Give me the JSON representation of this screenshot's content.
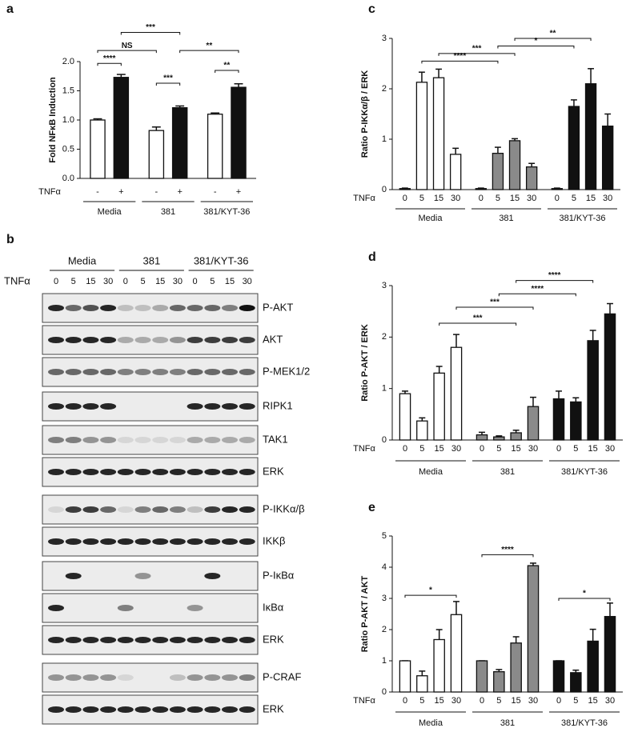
{
  "chart_data": [
    {
      "type": "bar",
      "label": "a",
      "ylabel": "Fold NFκB Induction",
      "row_label": "TNFα",
      "categories": [
        "-",
        "+",
        "-",
        "+",
        "-",
        "+"
      ],
      "groups": [
        "Media",
        "381",
        "381/KYT-36"
      ],
      "values": [
        1.0,
        1.73,
        0.82,
        1.21,
        1.1,
        1.56
      ],
      "errors": [
        0.02,
        0.05,
        0.06,
        0.03,
        0.02,
        0.06
      ],
      "colors": [
        "#ffffff",
        "#111111",
        "#ffffff",
        "#111111",
        "#ffffff",
        "#111111"
      ],
      "ylim": [
        0,
        2.0
      ],
      "yticks": [
        {
          "value": 0,
          "label": "0.0"
        },
        {
          "value": 0.5,
          "label": "0.5"
        },
        {
          "value": 1.0,
          "label": "1.0"
        },
        {
          "value": 1.5,
          "label": "1.5"
        },
        {
          "value": 2.0,
          "label": "2.0"
        }
      ],
      "annotations": [
        "****",
        "***",
        "**",
        "NS",
        "***",
        "**"
      ]
    },
    {
      "type": "bar",
      "label": "c",
      "ylabel": "Ratio P-IKKα/β / ERK",
      "row_label": "TNFα",
      "categories": [
        "0",
        "5",
        "15",
        "30",
        "0",
        "5",
        "15",
        "30",
        "0",
        "5",
        "15",
        "30"
      ],
      "groups": [
        "Media",
        "381",
        "381/KYT-36"
      ],
      "values": [
        0.02,
        2.13,
        2.22,
        0.7,
        0.02,
        0.72,
        0.97,
        0.45,
        0.02,
        1.65,
        2.1,
        1.26
      ],
      "errors": [
        0.01,
        0.2,
        0.17,
        0.12,
        0.01,
        0.12,
        0.04,
        0.07,
        0.01,
        0.13,
        0.3,
        0.24
      ],
      "colors": [
        "#ffffff",
        "#ffffff",
        "#ffffff",
        "#ffffff",
        "#8a8a8a",
        "#8a8a8a",
        "#8a8a8a",
        "#8a8a8a",
        "#111111",
        "#111111",
        "#111111",
        "#111111"
      ],
      "ylim": [
        0,
        3
      ],
      "yticks": [
        0,
        1,
        2,
        3
      ],
      "annotations": [
        "****",
        "***",
        "*",
        "**"
      ]
    },
    {
      "type": "bar",
      "label": "d",
      "ylabel": "Ratio P-AKT / ERK",
      "row_label": "TNFα",
      "categories": [
        "0",
        "5",
        "15",
        "30",
        "0",
        "5",
        "15",
        "30",
        "0",
        "5",
        "15",
        "30"
      ],
      "groups": [
        "Media",
        "381",
        "381/KYT-36"
      ],
      "values": [
        0.9,
        0.37,
        1.3,
        1.8,
        0.1,
        0.06,
        0.14,
        0.65,
        0.8,
        0.74,
        1.93,
        2.45
      ],
      "errors": [
        0.05,
        0.06,
        0.13,
        0.25,
        0.05,
        0.02,
        0.05,
        0.18,
        0.15,
        0.08,
        0.2,
        0.2
      ],
      "colors": [
        "#ffffff",
        "#ffffff",
        "#ffffff",
        "#ffffff",
        "#8a8a8a",
        "#8a8a8a",
        "#8a8a8a",
        "#8a8a8a",
        "#111111",
        "#111111",
        "#111111",
        "#111111"
      ],
      "ylim": [
        0,
        3
      ],
      "yticks": [
        0,
        1,
        2,
        3
      ],
      "annotations": [
        "***",
        "***",
        "****",
        "****"
      ]
    },
    {
      "type": "bar",
      "label": "e",
      "ylabel": "Ratio P-AKT / AKT",
      "row_label": "TNFα",
      "categories": [
        "0",
        "5",
        "15",
        "30",
        "0",
        "5",
        "15",
        "30",
        "0",
        "5",
        "15",
        "30"
      ],
      "groups": [
        "Media",
        "381",
        "381/KYT-36"
      ],
      "values": [
        1.0,
        0.52,
        1.68,
        2.48,
        1.0,
        0.65,
        1.57,
        4.05,
        1.0,
        0.62,
        1.63,
        2.42
      ],
      "errors": [
        0,
        0.15,
        0.32,
        0.42,
        0,
        0.07,
        0.2,
        0.08,
        0,
        0.08,
        0.38,
        0.43
      ],
      "colors": [
        "#ffffff",
        "#ffffff",
        "#ffffff",
        "#ffffff",
        "#8a8a8a",
        "#8a8a8a",
        "#8a8a8a",
        "#8a8a8a",
        "#111111",
        "#111111",
        "#111111",
        "#111111"
      ],
      "ylim": [
        0,
        5
      ],
      "yticks": [
        0,
        1,
        2,
        3,
        4,
        5
      ],
      "annotations": [
        "*",
        "****",
        "*"
      ]
    }
  ],
  "blot": {
    "label": "b",
    "row_label": "TNFα",
    "groups": [
      "Media",
      "381",
      "381/KYT-36"
    ],
    "lanes": [
      "0",
      "5",
      "15",
      "30",
      "0",
      "5",
      "15",
      "30",
      "0",
      "5",
      "15",
      "30"
    ],
    "rows": [
      "P-AKT",
      "AKT",
      "P-MEK1/2",
      "RIPK1",
      "TAK1",
      "ERK",
      "P-IKKα/β",
      "IKKβ",
      "P-IκBα",
      "IκBα",
      "ERK",
      "P-CRAF",
      "ERK"
    ]
  }
}
